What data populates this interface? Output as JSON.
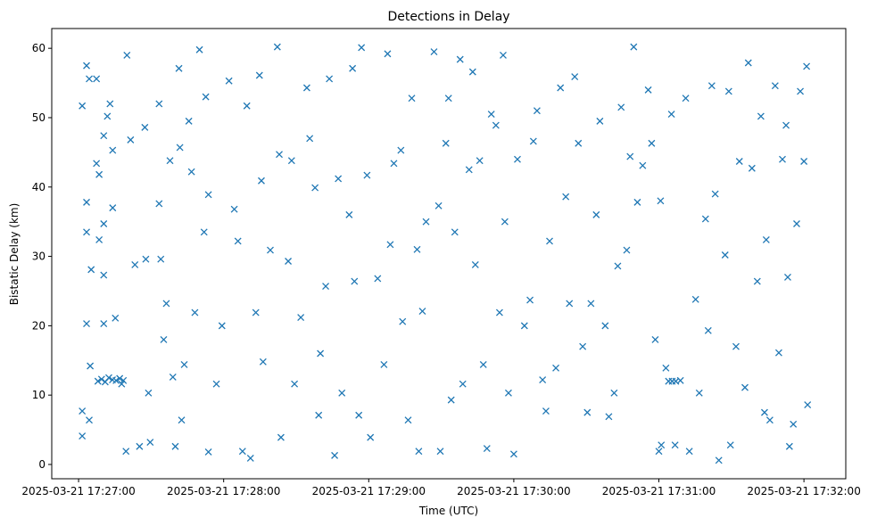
{
  "chart_data": {
    "type": "scatter",
    "title": "Detections in Delay",
    "xlabel": "Time (UTC)",
    "ylabel": "Bistatic Delay (km)",
    "x_units": "seconds after 2025-03-21 17:27:00 UTC",
    "xlim": [
      -11.1,
      317.3
    ],
    "ylim": [
      -2.06,
      62.85
    ],
    "grid": false,
    "marker": "x",
    "color": "#1f77b4",
    "xticks": [
      {
        "value": 0,
        "label": "2025-03-21 17:27:00"
      },
      {
        "value": 60,
        "label": "2025-03-21 17:28:00"
      },
      {
        "value": 120,
        "label": "2025-03-21 17:29:00"
      },
      {
        "value": 180,
        "label": "2025-03-21 17:30:00"
      },
      {
        "value": 240,
        "label": "2025-03-21 17:31:00"
      },
      {
        "value": 300,
        "label": "2025-03-21 17:32:00"
      }
    ],
    "yticks": [
      {
        "value": 0,
        "label": "0"
      },
      {
        "value": 10,
        "label": "10"
      },
      {
        "value": 20,
        "label": "20"
      },
      {
        "value": 30,
        "label": "30"
      },
      {
        "value": 40,
        "label": "40"
      },
      {
        "value": 50,
        "label": "50"
      },
      {
        "value": 60,
        "label": "60"
      }
    ],
    "points": [
      [
        1.5,
        51.7
      ],
      [
        1.5,
        7.7
      ],
      [
        1.5,
        4.1
      ],
      [
        3.3,
        57.5
      ],
      [
        3.3,
        37.8
      ],
      [
        3.3,
        33.5
      ],
      [
        3.3,
        20.3
      ],
      [
        4.4,
        55.6
      ],
      [
        4.8,
        14.2
      ],
      [
        5.2,
        28.1
      ],
      [
        4.4,
        6.4
      ],
      [
        7.4,
        55.6
      ],
      [
        7.4,
        43.4
      ],
      [
        8.5,
        41.8
      ],
      [
        8.5,
        32.4
      ],
      [
        10.4,
        47.4
      ],
      [
        10.4,
        34.7
      ],
      [
        10.4,
        27.3
      ],
      [
        10.4,
        20.3
      ],
      [
        11.9,
        50.2
      ],
      [
        13,
        52
      ],
      [
        14.1,
        45.3
      ],
      [
        14.1,
        37
      ],
      [
        15.2,
        21.1
      ],
      [
        17.8,
        11.6
      ],
      [
        20,
        59
      ],
      [
        21.5,
        46.8
      ],
      [
        19.6,
        1.9
      ],
      [
        23.3,
        28.8
      ],
      [
        25.2,
        2.6
      ],
      [
        27.4,
        48.6
      ],
      [
        27.8,
        29.6
      ],
      [
        28.9,
        10.3
      ],
      [
        29.6,
        3.2
      ],
      [
        33.3,
        52
      ],
      [
        33.3,
        37.6
      ],
      [
        34,
        29.6
      ],
      [
        35.2,
        18
      ],
      [
        36.3,
        23.2
      ],
      [
        37.8,
        43.8
      ],
      [
        39,
        12.6
      ],
      [
        40,
        2.6
      ],
      [
        41.9,
        45.7
      ],
      [
        41.5,
        57.1
      ],
      [
        42.6,
        6.4
      ],
      [
        43.7,
        14.4
      ],
      [
        45.6,
        49.5
      ],
      [
        46.7,
        42.2
      ],
      [
        48.1,
        21.9
      ],
      [
        50,
        59.8
      ],
      [
        52.6,
        53
      ],
      [
        51.9,
        33.5
      ],
      [
        53.7,
        38.9
      ],
      [
        53.7,
        1.8
      ],
      [
        57,
        11.6
      ],
      [
        59.3,
        20
      ],
      [
        62.2,
        55.3
      ],
      [
        64.4,
        36.8
      ],
      [
        65.9,
        32.2
      ],
      [
        67.8,
        1.9
      ],
      [
        69.6,
        51.7
      ],
      [
        71.1,
        0.9
      ],
      [
        73.3,
        21.9
      ],
      [
        74.8,
        56.1
      ],
      [
        75.6,
        40.9
      ],
      [
        76.3,
        14.8
      ],
      [
        79.3,
        30.9
      ],
      [
        82.2,
        60.2
      ],
      [
        83,
        44.7
      ],
      [
        83.7,
        3.9
      ],
      [
        86.7,
        29.3
      ],
      [
        88.1,
        43.8
      ],
      [
        89.3,
        11.6
      ],
      [
        91.9,
        21.2
      ],
      [
        94.4,
        54.3
      ],
      [
        95.6,
        47
      ],
      [
        97.8,
        39.9
      ],
      [
        99.3,
        7.1
      ],
      [
        100,
        16
      ],
      [
        102.2,
        25.7
      ],
      [
        103.7,
        55.6
      ],
      [
        105.9,
        1.3
      ],
      [
        107.4,
        41.2
      ],
      [
        108.9,
        10.3
      ],
      [
        111.9,
        36
      ],
      [
        113.3,
        57.1
      ],
      [
        114.1,
        26.4
      ],
      [
        115.9,
        7.1
      ],
      [
        117,
        60.1
      ],
      [
        119.3,
        41.7
      ],
      [
        120.7,
        3.9
      ],
      [
        123.7,
        26.8
      ],
      [
        126.3,
        14.4
      ],
      [
        127.8,
        59.2
      ],
      [
        128.9,
        31.7
      ],
      [
        130.4,
        43.4
      ],
      [
        133.3,
        45.3
      ],
      [
        134,
        20.6
      ],
      [
        136.3,
        6.4
      ],
      [
        137.8,
        52.8
      ],
      [
        140,
        31
      ],
      [
        140.7,
        1.9
      ],
      [
        142.2,
        22.1
      ],
      [
        143.7,
        35
      ],
      [
        147,
        59.5
      ],
      [
        148.9,
        37.3
      ],
      [
        149.6,
        1.9
      ],
      [
        151.9,
        46.3
      ],
      [
        153,
        52.8
      ],
      [
        154.1,
        9.3
      ],
      [
        155.6,
        33.5
      ],
      [
        157.8,
        58.4
      ],
      [
        158.9,
        11.6
      ],
      [
        161.5,
        42.5
      ],
      [
        163,
        56.6
      ],
      [
        164.1,
        28.8
      ],
      [
        165.9,
        43.8
      ],
      [
        167.4,
        14.4
      ],
      [
        168.9,
        2.3
      ],
      [
        170.7,
        50.5
      ],
      [
        172.6,
        48.9
      ],
      [
        174.1,
        21.9
      ],
      [
        175.6,
        59
      ],
      [
        176.3,
        35
      ],
      [
        177.8,
        10.3
      ],
      [
        180,
        1.5
      ],
      [
        181.5,
        44
      ],
      [
        184.4,
        20
      ],
      [
        186.7,
        23.7
      ],
      [
        188.1,
        46.6
      ],
      [
        189.6,
        51
      ],
      [
        191.9,
        12.2
      ],
      [
        193.3,
        7.7
      ],
      [
        194.8,
        32.2
      ],
      [
        197.4,
        13.9
      ],
      [
        199.3,
        54.3
      ],
      [
        201.5,
        38.6
      ],
      [
        203,
        23.2
      ],
      [
        205.2,
        55.9
      ],
      [
        206.7,
        46.3
      ],
      [
        208.5,
        17
      ],
      [
        210.4,
        7.5
      ],
      [
        211.9,
        23.2
      ],
      [
        214.1,
        36
      ],
      [
        215.6,
        49.5
      ],
      [
        217.8,
        20
      ],
      [
        219.3,
        6.9
      ],
      [
        221.5,
        10.3
      ],
      [
        223,
        28.6
      ],
      [
        224.4,
        51.5
      ],
      [
        226.7,
        30.9
      ],
      [
        228.1,
        44.4
      ],
      [
        229.6,
        60.2
      ],
      [
        231.1,
        37.8
      ],
      [
        233.3,
        43.1
      ],
      [
        235.6,
        54
      ],
      [
        237,
        46.3
      ],
      [
        238.5,
        18
      ],
      [
        240,
        1.9
      ],
      [
        240.7,
        38
      ],
      [
        242.9,
        13.9
      ],
      [
        245.2,
        50.5
      ],
      [
        246.7,
        2.8
      ],
      [
        248.9,
        12.1
      ],
      [
        251.1,
        52.8
      ],
      [
        252.6,
        1.9
      ],
      [
        255.2,
        23.8
      ],
      [
        256.7,
        10.3
      ],
      [
        259.3,
        35.4
      ],
      [
        260.4,
        19.3
      ],
      [
        261.9,
        54.6
      ],
      [
        263.3,
        39
      ],
      [
        264.8,
        0.6
      ],
      [
        267.4,
        30.2
      ],
      [
        268.9,
        53.8
      ],
      [
        269.6,
        2.8
      ],
      [
        271.9,
        17
      ],
      [
        273.3,
        43.7
      ],
      [
        275.6,
        11.1
      ],
      [
        277,
        57.9
      ],
      [
        278.5,
        42.7
      ],
      [
        280.7,
        26.4
      ],
      [
        282.2,
        50.2
      ],
      [
        283.7,
        7.5
      ],
      [
        284.4,
        32.4
      ],
      [
        285.9,
        6.4
      ],
      [
        288.1,
        54.6
      ],
      [
        289.6,
        16.1
      ],
      [
        291.1,
        44
      ],
      [
        292.6,
        48.9
      ],
      [
        293.3,
        27
      ],
      [
        294,
        2.6
      ],
      [
        295.6,
        5.8
      ],
      [
        297,
        34.7
      ],
      [
        298.5,
        53.8
      ],
      [
        300,
        43.7
      ],
      [
        301.1,
        57.4
      ],
      [
        301.5,
        8.6
      ],
      [
        8,
        12
      ],
      [
        9.5,
        12.3
      ],
      [
        11,
        11.9
      ],
      [
        12.5,
        12.5
      ],
      [
        14,
        12.2
      ],
      [
        15.5,
        12.1
      ],
      [
        17,
        12.4
      ],
      [
        18.5,
        12.1
      ],
      [
        244,
        12
      ],
      [
        245.5,
        12
      ],
      [
        247,
        12
      ],
      [
        241,
        2.8
      ]
    ]
  }
}
